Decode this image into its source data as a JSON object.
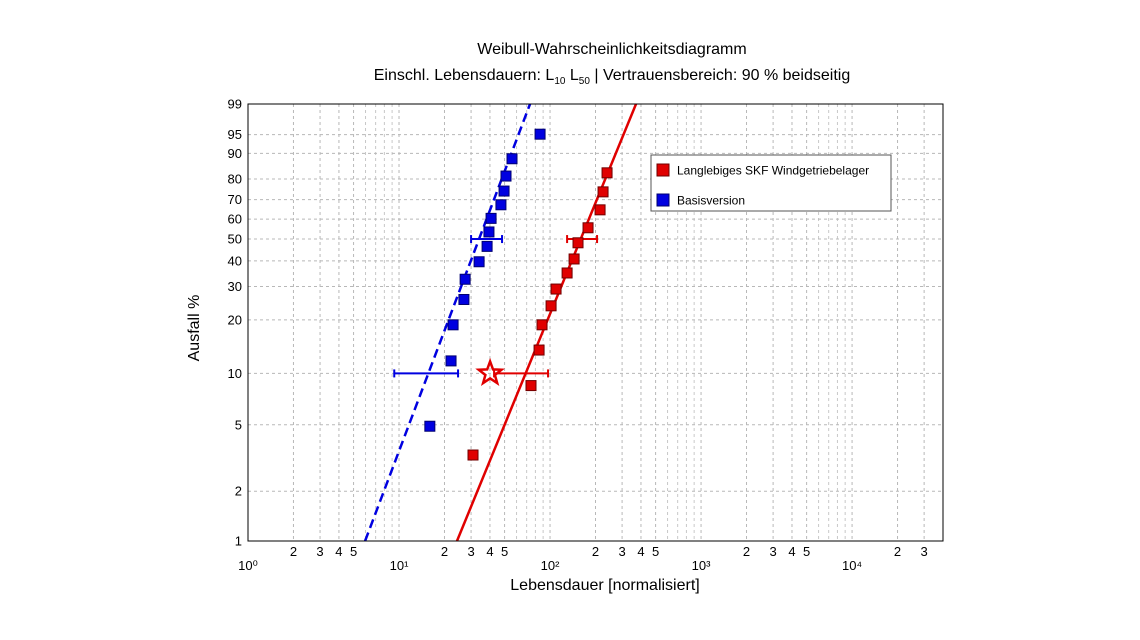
{
  "chart_data": {
    "type": "weibull",
    "title": "Weibull-Wahrscheinlichkeitsdiagramm",
    "subtitle": [
      "Einschl. Lebensdauern: L",
      "10",
      " L",
      "50",
      " | Vertrauensbereich: 90 % beidseitig"
    ],
    "x_label": "Lebensdauer [normalisiert]",
    "y_label": "Ausfall %",
    "xscale": "log",
    "yscale": "weibull",
    "xlim": [
      1,
      40000
    ],
    "ylim": [
      1,
      99
    ],
    "xticks": [
      {
        "value": 1,
        "label": "10⁰"
      },
      {
        "value": 2,
        "label": "2"
      },
      {
        "value": 3,
        "label": "3"
      },
      {
        "value": 4,
        "label": "4"
      },
      {
        "value": 5,
        "label": "5"
      },
      {
        "value": 10,
        "label": "10¹"
      },
      {
        "value": 20,
        "label": "2"
      },
      {
        "value": 30,
        "label": "3"
      },
      {
        "value": 40,
        "label": "4"
      },
      {
        "value": 50,
        "label": "5"
      },
      {
        "value": 100,
        "label": "10²"
      },
      {
        "value": 200,
        "label": "2"
      },
      {
        "value": 300,
        "label": "3"
      },
      {
        "value": 400,
        "label": "4"
      },
      {
        "value": 500,
        "label": "5"
      },
      {
        "value": 1000,
        "label": "10³"
      },
      {
        "value": 2000,
        "label": "2"
      },
      {
        "value": 3000,
        "label": "3"
      },
      {
        "value": 4000,
        "label": "4"
      },
      {
        "value": 5000,
        "label": "5"
      },
      {
        "value": 10000,
        "label": "10⁴"
      },
      {
        "value": 20000,
        "label": "2"
      },
      {
        "value": 30000,
        "label": "3"
      }
    ],
    "yticks": [
      1,
      2,
      5,
      10,
      20,
      30,
      40,
      50,
      60,
      70,
      80,
      90,
      95,
      99
    ],
    "grid": true,
    "minor_grid": true,
    "legend": "upper right",
    "series": [
      {
        "name": "Langlebiges SKF Windgetriebelager",
        "color": "#e00000",
        "edge": "#700000",
        "x": [
          30.9,
          74.8,
          84.6,
          88.5,
          101.6,
          109.6,
          129.7,
          144.3,
          153.2,
          178.5,
          214.4,
          224.4,
          238.5
        ],
        "values": [
          3.3,
          8.5,
          13.6,
          18.8,
          23.8,
          29.1,
          35.0,
          40.8,
          48.2,
          55.6,
          64.8,
          73.9,
          82.7
        ],
        "fit": {
          "x": [
            24.2,
            371
          ],
          "values": [
            1,
            99
          ],
          "dash": false
        },
        "intervals": [
          {
            "value": 10,
            "low": 42.6,
            "high": 97.0
          },
          {
            "value": 50,
            "low": 129.7,
            "high": 204.8
          }
        ],
        "l10_marker": {
          "x": 40.1,
          "value": 10
        }
      },
      {
        "name": "Basisversion",
        "color": "#0000e0",
        "edge": "#000070",
        "x": [
          16.0,
          22.1,
          22.8,
          26.9,
          27.4,
          33.9,
          38.3,
          39.4,
          40.7,
          47.3,
          49.6,
          51.1,
          56.0,
          85.9
        ],
        "values": [
          4.9,
          11.8,
          18.8,
          25.7,
          32.6,
          39.6,
          46.5,
          53.5,
          60.4,
          67.4,
          74.3,
          81.3,
          88.2,
          95.1
        ],
        "fit": {
          "x": [
            5.96,
            73.7
          ],
          "values": [
            1,
            99
          ],
          "dash": true
        },
        "intervals": [
          {
            "value": 10,
            "low": 9.3,
            "high": 24.6
          },
          {
            "value": 50,
            "low": 30.0,
            "high": 48.1
          }
        ]
      }
    ]
  }
}
